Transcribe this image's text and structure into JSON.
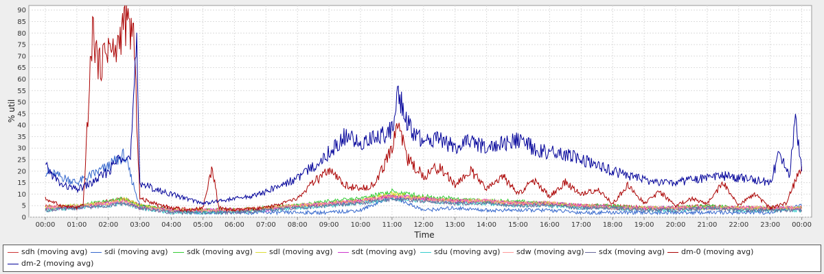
{
  "chart_data": {
    "type": "line",
    "title": "",
    "xlabel": "Time",
    "ylabel": "% util",
    "ylim": [
      0,
      92
    ],
    "yticks": [
      0,
      5,
      10,
      15,
      20,
      25,
      30,
      35,
      40,
      45,
      50,
      55,
      60,
      65,
      70,
      75,
      80,
      85,
      90
    ],
    "xlim": [
      0,
      24.3
    ],
    "x_tick_labels": [
      "00:00",
      "01:00",
      "02:00",
      "03:00",
      "04:00",
      "05:00",
      "06:00",
      "07:00",
      "08:00",
      "09:00",
      "10:00",
      "11:00",
      "12:00",
      "13:00",
      "14:00",
      "15:00",
      "16:00",
      "17:00",
      "18:00",
      "19:00",
      "20:00",
      "21:00",
      "22:00",
      "23:00",
      "00:00"
    ],
    "x_tick_hours": [
      0,
      1,
      2,
      3,
      4,
      5,
      6,
      7,
      8,
      9,
      10,
      11,
      12,
      13,
      14,
      15,
      16,
      17,
      18,
      19,
      20,
      21,
      22,
      23,
      24
    ],
    "grid": true,
    "legend_placement": "bottom",
    "series": [
      {
        "name": "sdh (moving avg)",
        "color": "#cc3333",
        "x": [
          0,
          1,
          2,
          2.5,
          3,
          4,
          5,
          6,
          7,
          8,
          9,
          10,
          11,
          12,
          13,
          14,
          15,
          16,
          17,
          18,
          19,
          20,
          21,
          22,
          23,
          24
        ],
        "y": [
          5,
          4,
          7,
          8,
          5,
          4,
          3,
          3,
          4,
          5,
          6,
          7,
          9,
          8,
          7,
          7,
          6,
          6,
          5,
          5,
          4,
          4,
          5,
          4,
          4,
          4
        ]
      },
      {
        "name": "sdi (moving avg)",
        "color": "#3366cc",
        "x": [
          0,
          1,
          2,
          2.5,
          3,
          4,
          5,
          6,
          7,
          8,
          9,
          10,
          11,
          12,
          13,
          14,
          15,
          16,
          17,
          18,
          19,
          20,
          21,
          22,
          23,
          24
        ],
        "y": [
          20,
          15,
          22,
          27,
          5,
          3,
          2,
          2,
          2,
          2,
          2,
          3,
          9,
          3,
          4,
          3,
          3,
          3,
          2,
          2,
          2,
          2,
          2,
          2,
          2,
          5
        ]
      },
      {
        "name": "sdk (moving avg)",
        "color": "#33cc33",
        "x": [
          0,
          1,
          2,
          2.5,
          3,
          4,
          5,
          6,
          7,
          8,
          9,
          10,
          11,
          12,
          13,
          14,
          15,
          16,
          17,
          18,
          19,
          20,
          21,
          22,
          23,
          24
        ],
        "y": [
          4,
          5,
          7,
          8,
          5,
          3,
          3,
          3,
          4,
          5,
          7,
          8,
          11,
          9,
          8,
          7,
          7,
          6,
          5,
          5,
          4,
          4,
          5,
          4,
          4,
          4
        ]
      },
      {
        "name": "sdl (moving avg)",
        "color": "#dddd33",
        "x": [
          0,
          1,
          2,
          2.5,
          3,
          4,
          5,
          6,
          7,
          8,
          9,
          10,
          11,
          12,
          13,
          14,
          15,
          16,
          17,
          18,
          19,
          20,
          21,
          22,
          23,
          24
        ],
        "y": [
          4,
          5,
          6,
          8,
          5,
          3,
          3,
          3,
          4,
          5,
          6,
          7,
          10,
          8,
          7,
          7,
          6,
          6,
          5,
          4,
          4,
          4,
          4,
          4,
          4,
          4
        ]
      },
      {
        "name": "sdt (moving avg)",
        "color": "#cc33cc",
        "x": [
          0,
          1,
          2,
          2.5,
          3,
          4,
          5,
          6,
          7,
          8,
          9,
          10,
          11,
          12,
          13,
          14,
          15,
          16,
          17,
          18,
          19,
          20,
          21,
          22,
          23,
          24
        ],
        "y": [
          4,
          4,
          6,
          7,
          4,
          3,
          3,
          3,
          3,
          5,
          6,
          7,
          9,
          8,
          7,
          7,
          6,
          6,
          5,
          4,
          4,
          4,
          4,
          4,
          4,
          4
        ]
      },
      {
        "name": "sdu (moving avg)",
        "color": "#33cccc",
        "x": [
          0,
          1,
          2,
          2.5,
          3,
          4,
          5,
          6,
          7,
          8,
          9,
          10,
          11,
          12,
          13,
          14,
          15,
          16,
          17,
          18,
          19,
          20,
          21,
          22,
          23,
          24
        ],
        "y": [
          3,
          4,
          5,
          6,
          4,
          2,
          2,
          2,
          3,
          4,
          5,
          6,
          8,
          7,
          6,
          6,
          5,
          5,
          4,
          4,
          3,
          3,
          4,
          3,
          3,
          3
        ]
      },
      {
        "name": "sdw (moving avg)",
        "color": "#ff9999",
        "x": [
          0,
          1,
          2,
          2.5,
          3,
          4,
          5,
          6,
          7,
          8,
          9,
          10,
          11,
          12,
          13,
          14,
          15,
          16,
          17,
          18,
          19,
          20,
          21,
          22,
          23,
          24
        ],
        "y": [
          4,
          5,
          6,
          7,
          4,
          3,
          3,
          3,
          4,
          5,
          6,
          7,
          9,
          8,
          7,
          7,
          6,
          6,
          5,
          4,
          4,
          4,
          4,
          4,
          4,
          4
        ]
      },
      {
        "name": "sdx (moving avg)",
        "color": "#666699",
        "x": [
          0,
          1,
          2,
          2.5,
          3,
          4,
          5,
          6,
          7,
          8,
          9,
          10,
          11,
          12,
          13,
          14,
          15,
          16,
          17,
          18,
          19,
          20,
          21,
          22,
          23,
          24
        ],
        "y": [
          3,
          4,
          5,
          6,
          4,
          2,
          2,
          2,
          3,
          4,
          5,
          6,
          8,
          7,
          6,
          6,
          5,
          5,
          4,
          4,
          3,
          3,
          4,
          3,
          3,
          3
        ]
      },
      {
        "name": "dm-0 (moving avg)",
        "color": "#aa0000",
        "x": [
          0,
          0.5,
          1,
          1.2,
          1.5,
          1.7,
          2,
          2.2,
          2.5,
          2.8,
          3,
          3.5,
          4,
          4.5,
          5,
          5.3,
          5.5,
          6,
          7,
          8,
          8.5,
          9,
          9.5,
          10,
          10.5,
          11,
          11.2,
          11.5,
          12,
          12.5,
          13,
          13.5,
          14,
          14.5,
          15,
          15.5,
          16,
          16.5,
          17,
          17.5,
          18,
          18.5,
          19,
          19.5,
          20,
          20.5,
          21,
          21.5,
          22,
          22.5,
          23,
          23.5,
          24
        ],
        "y": [
          8,
          5,
          4,
          5,
          82,
          65,
          75,
          70,
          85,
          80,
          8,
          6,
          4,
          3,
          4,
          22,
          4,
          3,
          4,
          8,
          15,
          20,
          14,
          12,
          15,
          30,
          42,
          25,
          18,
          22,
          14,
          20,
          12,
          18,
          10,
          16,
          9,
          15,
          10,
          12,
          6,
          14,
          6,
          11,
          5,
          8,
          6,
          15,
          5,
          10,
          4,
          6,
          22
        ]
      },
      {
        "name": "dm-2 (moving avg)",
        "color": "#000099",
        "x": [
          0,
          0.5,
          1,
          1.5,
          2,
          2.5,
          2.7,
          2.9,
          3,
          3.5,
          4,
          4.5,
          5,
          5.5,
          6,
          6.5,
          7,
          7.5,
          8,
          8.5,
          9,
          9.5,
          10,
          10.5,
          11,
          11.2,
          11.5,
          12,
          12.5,
          13,
          13.5,
          14,
          14.5,
          15,
          15.5,
          16,
          16.5,
          17,
          17.5,
          18,
          18.5,
          19,
          19.5,
          20,
          20.5,
          21,
          21.5,
          22,
          22.5,
          23,
          23.3,
          23.6,
          23.8,
          24
        ],
        "y": [
          22,
          14,
          12,
          15,
          20,
          28,
          25,
          74,
          15,
          12,
          10,
          8,
          6,
          7,
          8,
          9,
          11,
          14,
          17,
          22,
          28,
          35,
          32,
          35,
          38,
          55,
          40,
          32,
          35,
          30,
          33,
          30,
          32,
          33,
          30,
          28,
          27,
          25,
          22,
          20,
          18,
          16,
          15,
          15,
          16,
          17,
          18,
          17,
          16,
          15,
          28,
          17,
          44,
          20
        ]
      }
    ]
  }
}
